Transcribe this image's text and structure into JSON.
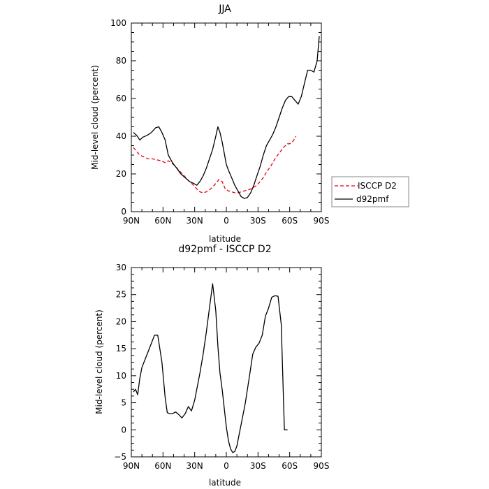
{
  "chart_data": [
    {
      "type": "line",
      "title": "JJA",
      "xlabel": "latitude",
      "ylabel": "Mid-level cloud (percent)",
      "xlim": [
        90,
        -90
      ],
      "ylim": [
        0,
        100
      ],
      "xticks": [
        90,
        60,
        30,
        0,
        -30,
        -60,
        -90
      ],
      "xtick_labels": [
        "90N",
        "60N",
        "30N",
        "0",
        "30S",
        "60S",
        "90S"
      ],
      "yticks": [
        0,
        20,
        40,
        60,
        80,
        100
      ],
      "ytick_labels": [
        "0",
        "20",
        "40",
        "60",
        "80",
        "100"
      ],
      "grid": false,
      "legend_position": "right",
      "series": [
        {
          "name": "ISCCP D2",
          "color": "#e8000b",
          "dash": "dashed",
          "x": [
            88,
            85,
            82,
            78,
            74,
            70,
            66,
            62,
            58,
            55,
            50,
            45,
            40,
            35,
            31,
            28,
            25,
            22,
            19,
            16,
            13,
            10,
            7,
            4,
            1,
            -2,
            -5,
            -8,
            -11,
            -14,
            -17,
            -20,
            -23,
            -26,
            -29,
            -32,
            -35,
            -38,
            -42,
            -46,
            -50,
            -54,
            -58,
            -60,
            -62,
            -64,
            -66
          ],
          "y": [
            34,
            32,
            30,
            29,
            28,
            28,
            27.5,
            27,
            26,
            27,
            25,
            22,
            19,
            16,
            14,
            12,
            10.5,
            10,
            10.5,
            11.5,
            13,
            15,
            17,
            16,
            12,
            11,
            10.5,
            10,
            10,
            10.5,
            11,
            11.5,
            12,
            13,
            14,
            16,
            18,
            21,
            24,
            28,
            31,
            34,
            36,
            36,
            36.5,
            38,
            40
          ]
        },
        {
          "name": "d92pmf",
          "color": "#000000",
          "dash": "solid",
          "x": [
            88,
            85,
            82,
            79,
            75,
            71,
            67,
            64,
            61,
            58,
            55,
            51,
            47,
            43,
            39,
            35,
            31,
            28,
            25,
            22,
            19,
            16,
            13,
            10,
            8,
            6,
            4,
            2,
            0,
            -2,
            -5,
            -8,
            -11,
            -14,
            -17,
            -20,
            -23,
            -26,
            -29,
            -32,
            -35,
            -38,
            -41,
            -44,
            -47,
            -50,
            -53,
            -56,
            -59,
            -62,
            -65,
            -68,
            -71,
            -74,
            -77,
            -80,
            -83,
            -86,
            -88
          ],
          "y": [
            42,
            40.5,
            38,
            39.5,
            40.5,
            42,
            44.5,
            45,
            42,
            38,
            30,
            26,
            23,
            20,
            18,
            16,
            15,
            14,
            16,
            19,
            23,
            28,
            33,
            40,
            45,
            42,
            37,
            31,
            25,
            22,
            18,
            14,
            11,
            8,
            7,
            7.5,
            10,
            14,
            19,
            24,
            30,
            35,
            38,
            41,
            45,
            50,
            55,
            59,
            61,
            61,
            59,
            57,
            61,
            68,
            75,
            75,
            74,
            80,
            93
          ]
        }
      ]
    },
    {
      "type": "line",
      "title": "d92pmf - ISCCP D2",
      "xlabel": "latitude",
      "ylabel": "Mid-level cloud (percent)",
      "xlim": [
        90,
        -90
      ],
      "ylim": [
        -5,
        30
      ],
      "xticks": [
        90,
        60,
        30,
        0,
        -30,
        -60,
        -90
      ],
      "xtick_labels": [
        "90N",
        "60N",
        "30N",
        "0",
        "30S",
        "60S",
        "90S"
      ],
      "yticks": [
        -5,
        0,
        5,
        10,
        15,
        20,
        25,
        30
      ],
      "ytick_labels": [
        "−5",
        "0",
        "5",
        "10",
        "15",
        "20",
        "25",
        "30"
      ],
      "grid": false,
      "series": [
        {
          "color": "#000000",
          "dash": "solid",
          "x": [
            88,
            86,
            84,
            82,
            80,
            77,
            74,
            71,
            68,
            65,
            63,
            61,
            58,
            56,
            54,
            51,
            48,
            45,
            42,
            39,
            36,
            33,
            30,
            28,
            25,
            22,
            19,
            16,
            13,
            10,
            8,
            6,
            4,
            2,
            0,
            -2,
            -4,
            -6,
            -8,
            -10,
            -12,
            -14,
            -16,
            -18,
            -20,
            -22,
            -25,
            -28,
            -31,
            -34,
            -37,
            -40,
            -43,
            -46,
            -49,
            -52,
            -55,
            -58,
            -61,
            -63,
            -65
          ],
          "y": [
            7,
            7.5,
            6.5,
            9.5,
            11.5,
            13,
            14.5,
            16,
            17.5,
            17.5,
            15,
            12.5,
            6,
            3.2,
            3,
            3,
            3.3,
            2.8,
            2.2,
            3,
            4.3,
            3.5,
            5.5,
            7.5,
            10.5,
            14,
            18,
            22.5,
            27,
            22,
            15.5,
            10.5,
            7.5,
            4,
            0.5,
            -2,
            -3.5,
            -4.2,
            -4,
            -3,
            -1,
            1,
            3,
            5,
            7.5,
            10,
            14,
            15.3,
            16,
            17.5,
            21,
            22.5,
            24.5,
            24.8,
            24.7,
            19.5,
            0,
            0,
            0,
            0,
            0
          ]
        }
      ]
    }
  ]
}
